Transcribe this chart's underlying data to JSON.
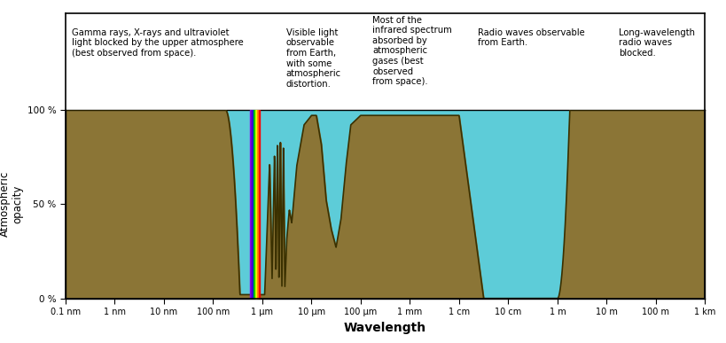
{
  "xlabel": "Wavelength",
  "ylabel": "Atmospheric\nopacity",
  "bg_sky": "#5DCCD8",
  "bg_ground": "#8B7536",
  "bg_sky_light": "#A8DDE8",
  "tick_labels": [
    "0.1 nm",
    "1 nm",
    "10 nm",
    "100 nm",
    "1 μm",
    "10 μm",
    "100 μm",
    "1 mm",
    "1 cm",
    "10 cm",
    "1 m",
    "10 m",
    "100 m",
    "1 km"
  ],
  "ytick_labels": [
    "0 %",
    "50 %",
    "100 %"
  ],
  "annotations": [
    {
      "text": "Gamma rays, X-rays and ultraviolet\nlight blocked by the upper atmosphere\n(best observed from space).",
      "xi": 1,
      "yi": 0.78,
      "ha": "left",
      "fontsize": 7.2
    },
    {
      "text": "Visible light\nobservable\nfrom Earth,\nwith some\natmospheric\ndistortion.",
      "xi": 4.15,
      "yi": 0.78,
      "ha": "left",
      "fontsize": 7.2
    },
    {
      "text": "Most of the\ninfrared spectrum\nabsorbed by\natmospheric\ngases (best\nobserved\nfrom space).",
      "xi": 5.2,
      "yi": 0.84,
      "ha": "left",
      "fontsize": 7.2
    },
    {
      "text": "Radio waves observable\nfrom Earth.",
      "xi": 9.1,
      "yi": 0.78,
      "ha": "left",
      "fontsize": 7.2
    },
    {
      "text": "Long-wavelength\nradio waves\nblocked.",
      "xi": 11.6,
      "yi": 0.78,
      "ha": "left",
      "fontsize": 7.2
    }
  ]
}
